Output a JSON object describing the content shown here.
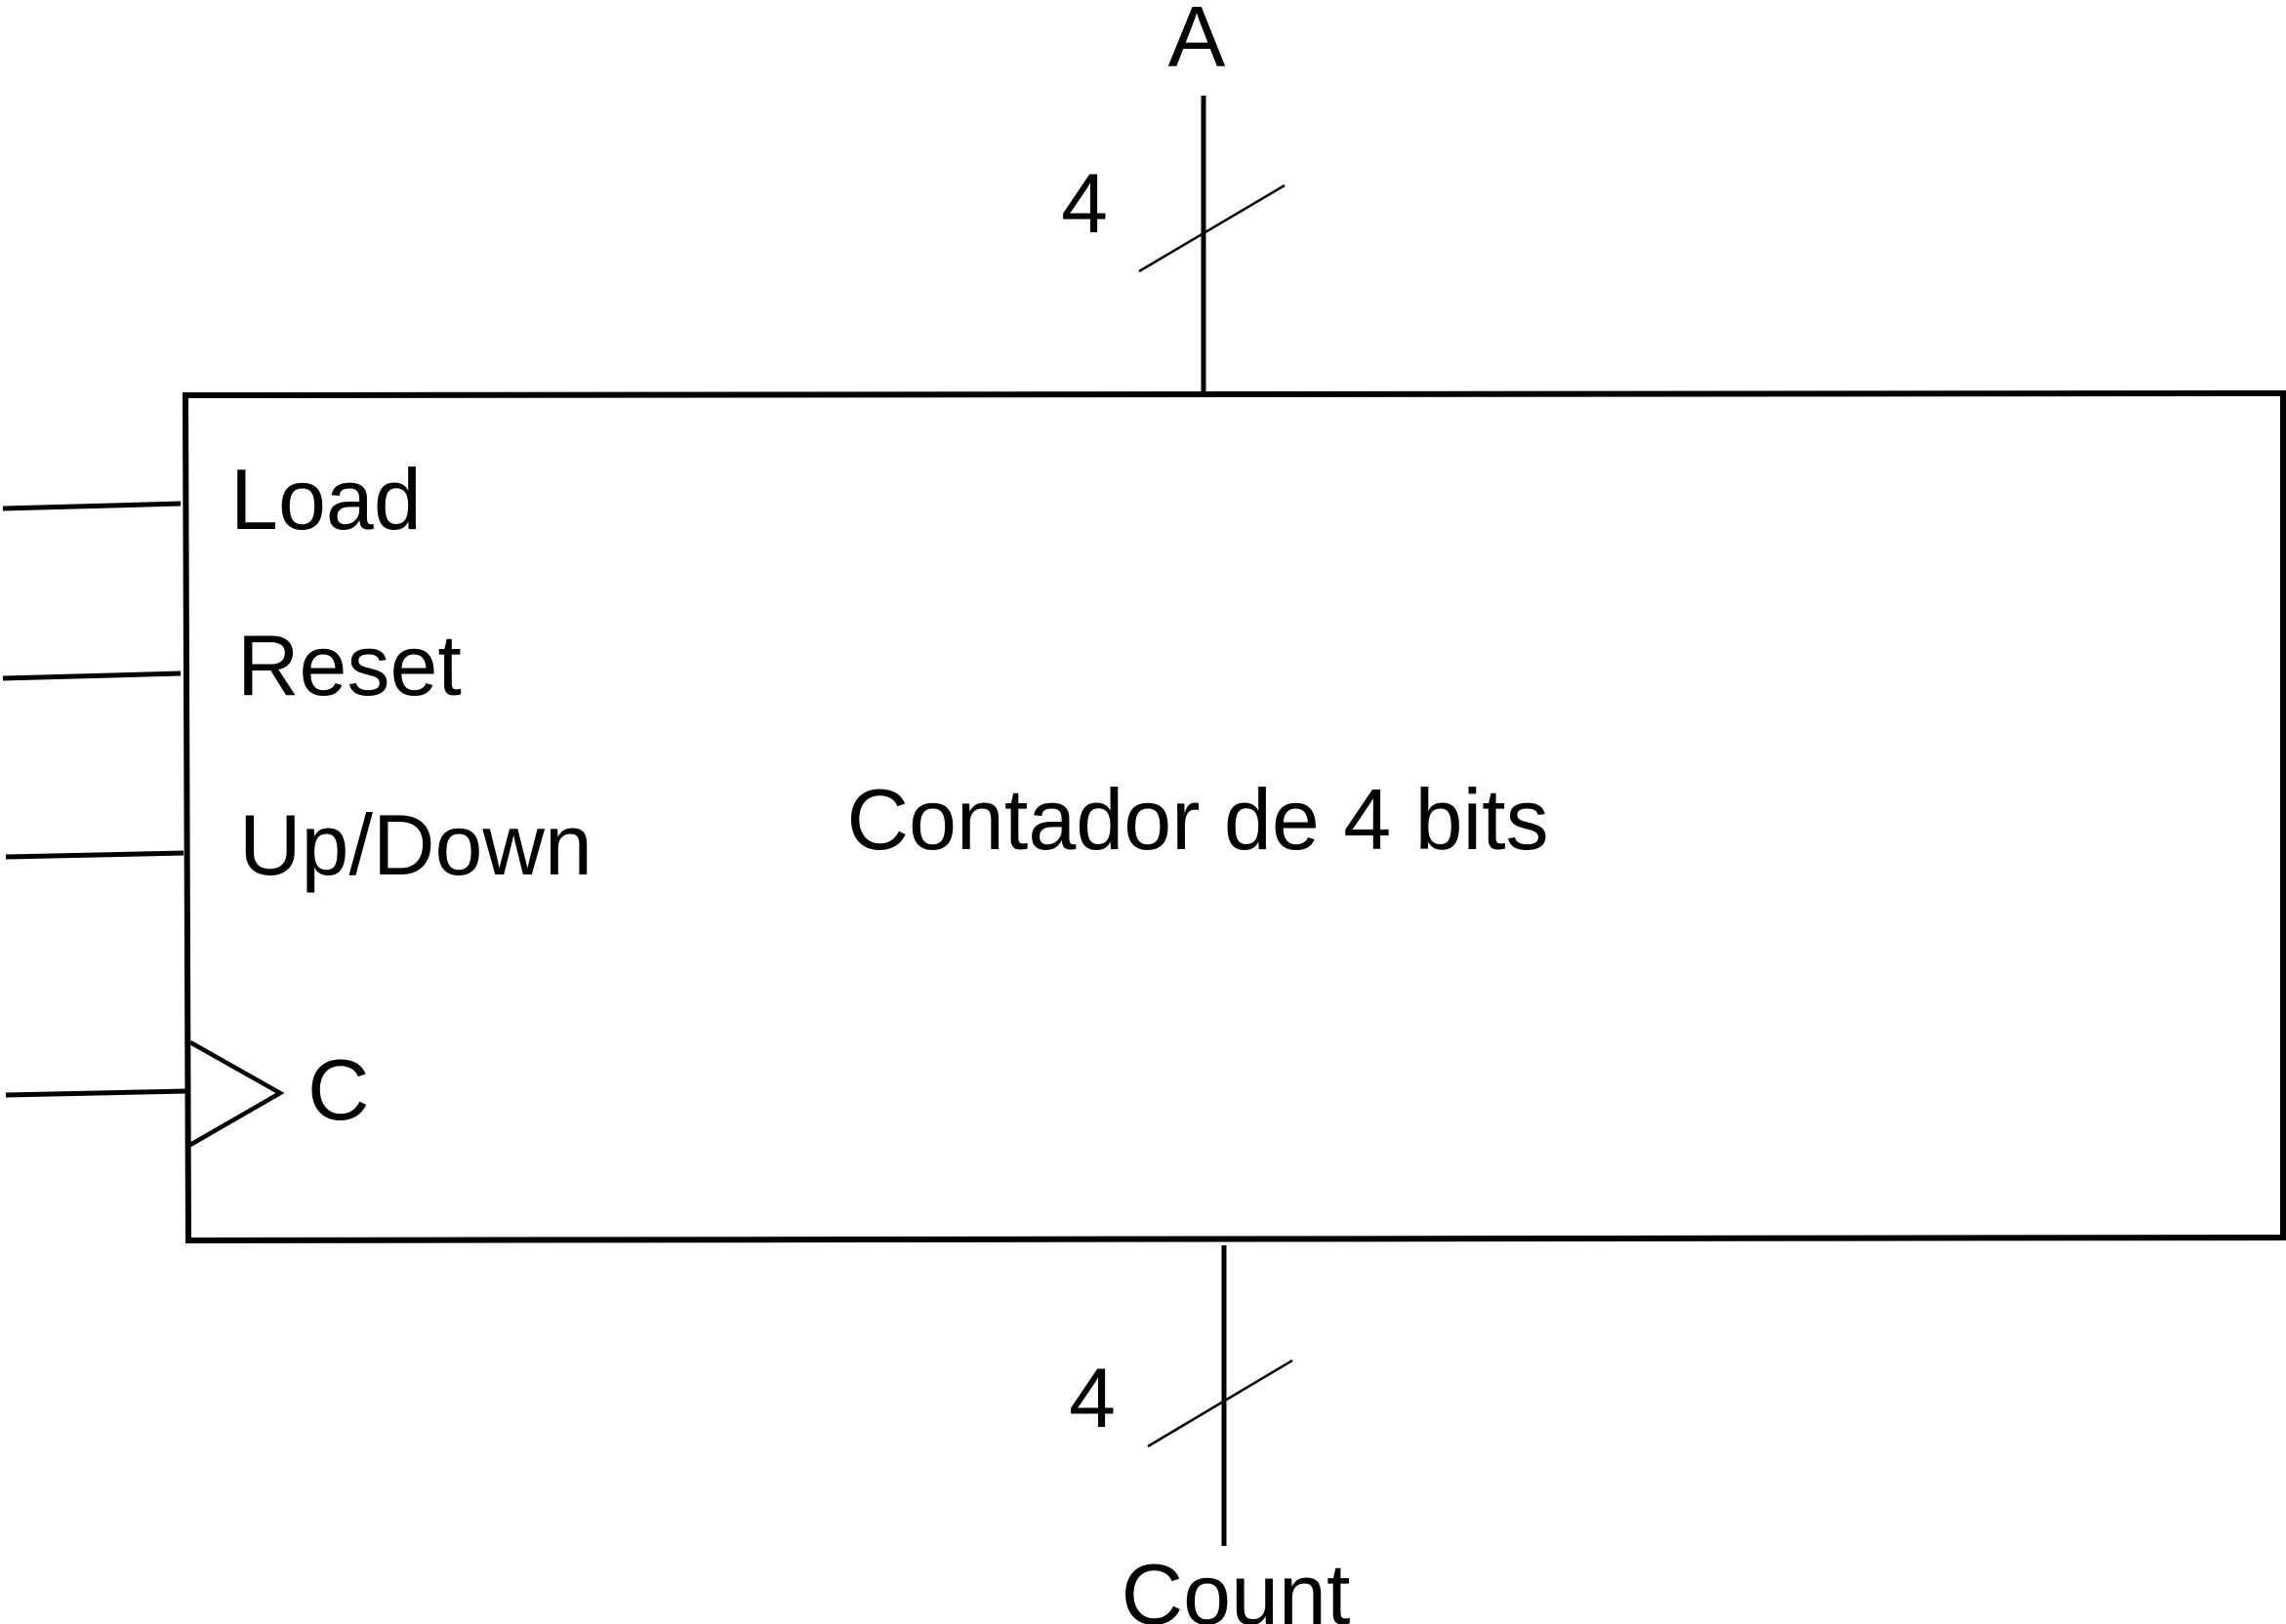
{
  "block": {
    "title": "Contador de 4 bits"
  },
  "inputs": {
    "load": "Load",
    "reset": "Reset",
    "up_down": "Up/Down",
    "clock": "C"
  },
  "bus_in": {
    "name": "A",
    "width": "4"
  },
  "bus_out": {
    "name": "Count",
    "width": "4"
  }
}
